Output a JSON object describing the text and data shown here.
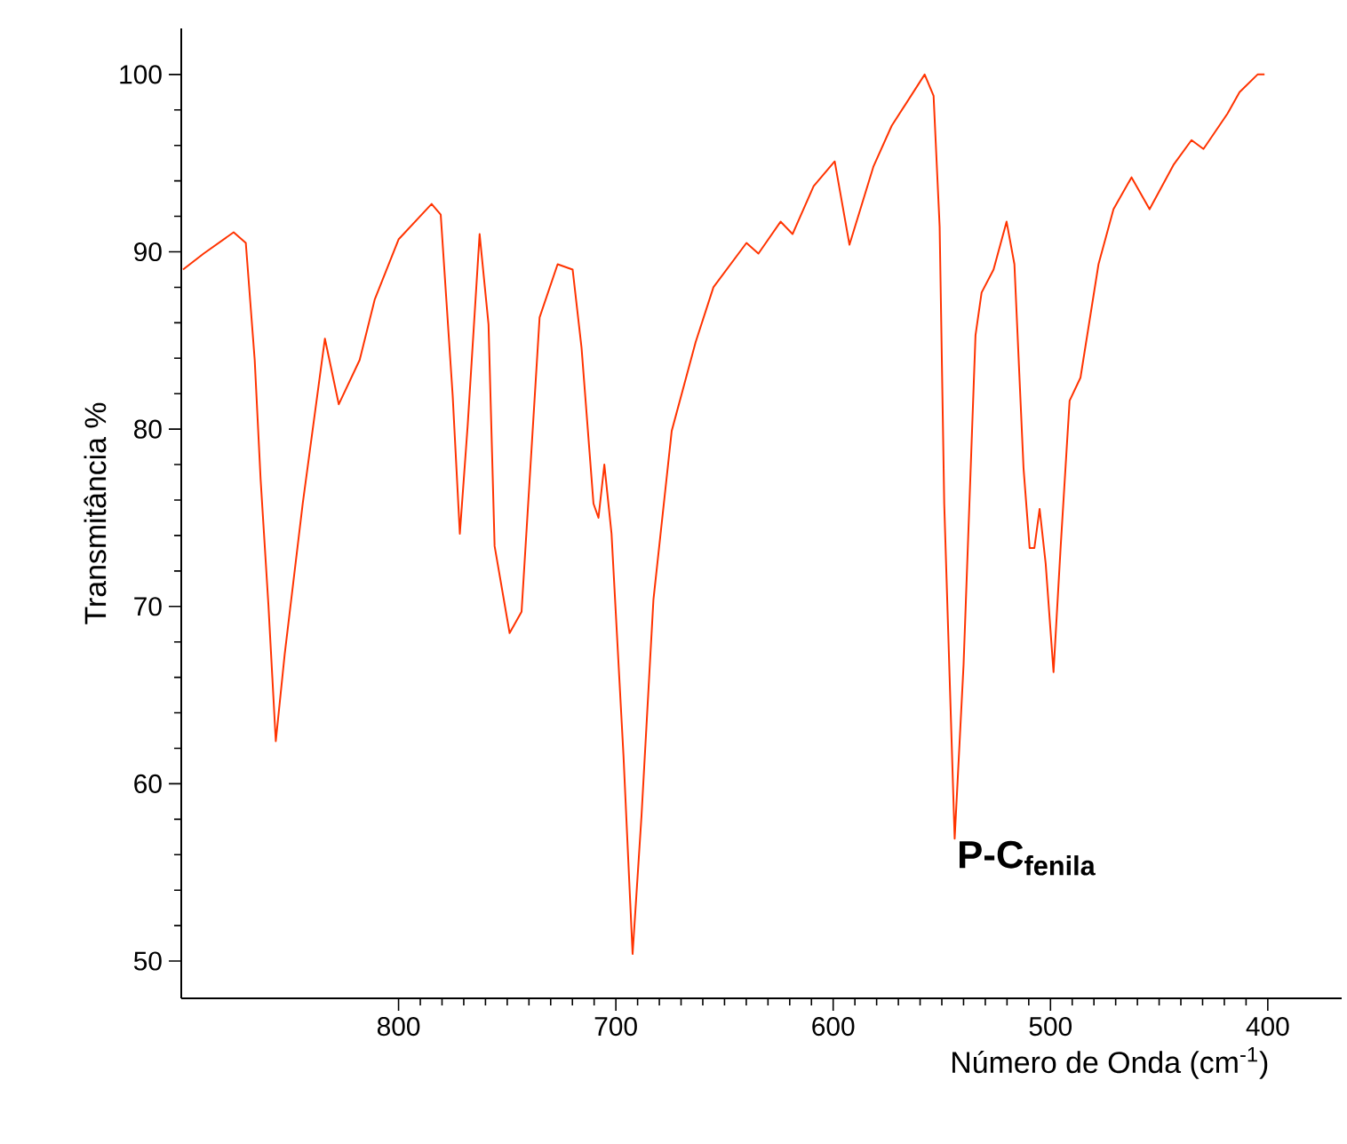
{
  "chart_data": {
    "type": "line",
    "xlabel": "Número de Onda (cm$^{-1}$)",
    "ylabel": "Transmitância  %",
    "annotations": [
      {
        "text": "P-C$_{fenila}$",
        "x": 544,
        "y": 56.9
      }
    ],
    "xlim": [
      900,
      366
    ],
    "ylim": [
      47.9,
      102.6
    ],
    "xticks": [
      800,
      700,
      600,
      500,
      400
    ],
    "yticks": [
      50,
      60,
      70,
      80,
      90,
      100
    ],
    "grid": false,
    "marker": "none",
    "line_style": "solid",
    "series": [
      {
        "color": "#ff3300",
        "x": [
          899.2,
          889.7,
          875.9,
          870.3,
          866.2,
          863.5,
          859.9,
          856.5,
          852.4,
          844.1,
          833.9,
          827.5,
          817.9,
          811,
          800,
          784.8,
          780.6,
          775.1,
          771.8,
          768.2,
          762.7,
          758.6,
          755.8,
          748.9,
          743.4,
          735.1,
          726.8,
          719.9,
          715.8,
          710.3,
          708,
          705.3,
          702,
          696.5,
          692.3,
          688.2,
          682.7,
          674.3,
          663.3,
          655.1,
          639.9,
          634.4,
          624.2,
          618.7,
          609,
          599.3,
          592.5,
          581.5,
          573.1,
          557.9,
          553.8,
          551,
          548.9,
          544.1,
          540,
          534.5,
          531.7,
          526.2,
          520.2,
          516.6,
          512.4,
          509.6,
          507.4,
          505,
          502.2,
          498.6,
          495.3,
          491.2,
          486.2,
          477.9,
          471,
          462.7,
          454.4,
          443.4,
          435.1,
          429.6,
          418.5,
          413,
          404.7,
          401.5
        ],
        "values": [
          89.0,
          89.9,
          91.1,
          90.5,
          83.9,
          77.2,
          70.1,
          62.4,
          67.3,
          75.8,
          85.1,
          81.4,
          83.9,
          87.3,
          90.7,
          92.7,
          92.1,
          81.9,
          74.1,
          80.2,
          91.0,
          85.9,
          73.4,
          68.5,
          69.7,
          86.3,
          89.3,
          89.0,
          84.6,
          75.8,
          75.0,
          78.0,
          74.1,
          61.6,
          50.4,
          58.2,
          70.4,
          79.9,
          84.9,
          88.0,
          90.5,
          89.9,
          91.7,
          91.0,
          93.7,
          95.1,
          90.4,
          94.8,
          97.1,
          100.0,
          98.8,
          91.4,
          75.8,
          56.9,
          66.7,
          85.3,
          87.7,
          89.0,
          91.7,
          89.3,
          77.8,
          73.3,
          73.3,
          75.5,
          72.4,
          66.3,
          73.4,
          81.6,
          82.9,
          89.3,
          92.4,
          94.2,
          92.4,
          94.9,
          96.3,
          95.8,
          97.8,
          99.0,
          100.0,
          100.0
        ]
      }
    ]
  }
}
